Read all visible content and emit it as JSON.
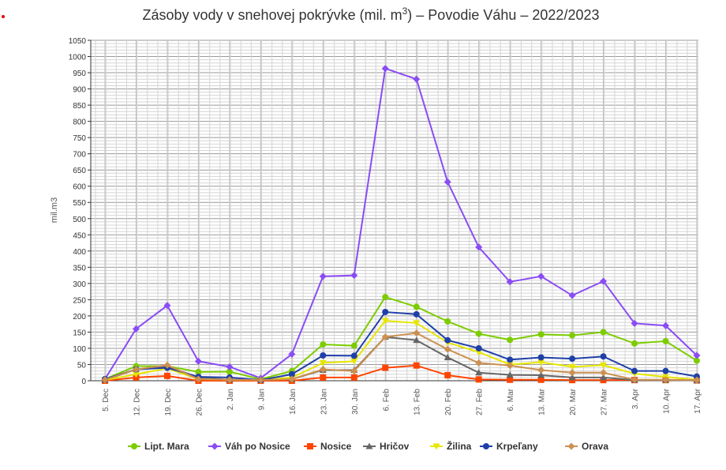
{
  "chart_data": {
    "type": "line",
    "title": "Zásoby vody v snehovej pokrývke (mil. m3) – Povodie Váhu – 2022/2023",
    "title_main": "Zásoby vody v snehovej pokrývke (mil. m",
    "title_sup": "3",
    "title_rest": ") – Povodie Váhu – 2022/2023",
    "xlabel": "",
    "ylabel": "mil.m3",
    "ylim": [
      0,
      1050
    ],
    "ytick_step": 50,
    "grid": true,
    "legend_position": "bottom",
    "categories": [
      "5. Dec",
      "12. Dec",
      "19. Dec",
      "26. Dec",
      "2. Jan",
      "9. Jan",
      "16. Jan",
      "23. Jan",
      "30. Jan",
      "6. Feb",
      "13. Feb",
      "20. Feb",
      "27. Feb",
      "6. Mar",
      "13. Mar",
      "20. Mar",
      "27. Mar",
      "3. Apr",
      "10. Apr",
      "17. Apr"
    ],
    "series": [
      {
        "name": "Lipt. Mara",
        "color": "#7ccc00",
        "marker": "circle",
        "values": [
          5,
          45,
          45,
          27,
          28,
          5,
          30,
          112,
          108,
          258,
          228,
          183,
          145,
          126,
          143,
          140,
          150,
          115,
          122,
          62
        ]
      },
      {
        "name": "Váh po Nosice",
        "color": "#8a4cf5",
        "marker": "diamond",
        "values": [
          5,
          160,
          232,
          60,
          43,
          8,
          82,
          322,
          325,
          963,
          930,
          613,
          412,
          305,
          322,
          263,
          307,
          177,
          170,
          78
        ]
      },
      {
        "name": "Nosice",
        "color": "#ff4500",
        "marker": "square",
        "values": [
          0,
          10,
          15,
          0,
          0,
          0,
          0,
          10,
          10,
          40,
          47,
          17,
          4,
          3,
          3,
          2,
          2,
          2,
          2,
          1
        ]
      },
      {
        "name": "Hričov",
        "color": "#666666",
        "marker": "triangle",
        "values": [
          2,
          35,
          45,
          10,
          3,
          2,
          5,
          33,
          33,
          135,
          125,
          72,
          25,
          18,
          17,
          10,
          10,
          2,
          2,
          1
        ]
      },
      {
        "name": "Žilina",
        "color": "#e6e600",
        "marker": "triangle-down",
        "values": [
          2,
          20,
          38,
          5,
          3,
          2,
          10,
          55,
          60,
          185,
          178,
          118,
          88,
          50,
          57,
          43,
          48,
          22,
          12,
          3
        ]
      },
      {
        "name": "Krpeľany",
        "color": "#1f3fa8",
        "marker": "circle",
        "values": [
          5,
          35,
          40,
          12,
          10,
          2,
          20,
          78,
          77,
          212,
          205,
          125,
          100,
          65,
          72,
          68,
          75,
          30,
          30,
          13
        ]
      },
      {
        "name": "Orava",
        "color": "#cc9050",
        "marker": "diamond",
        "values": [
          3,
          35,
          48,
          5,
          3,
          2,
          5,
          35,
          30,
          135,
          147,
          97,
          55,
          47,
          33,
          25,
          25,
          3,
          3,
          2
        ]
      }
    ]
  }
}
